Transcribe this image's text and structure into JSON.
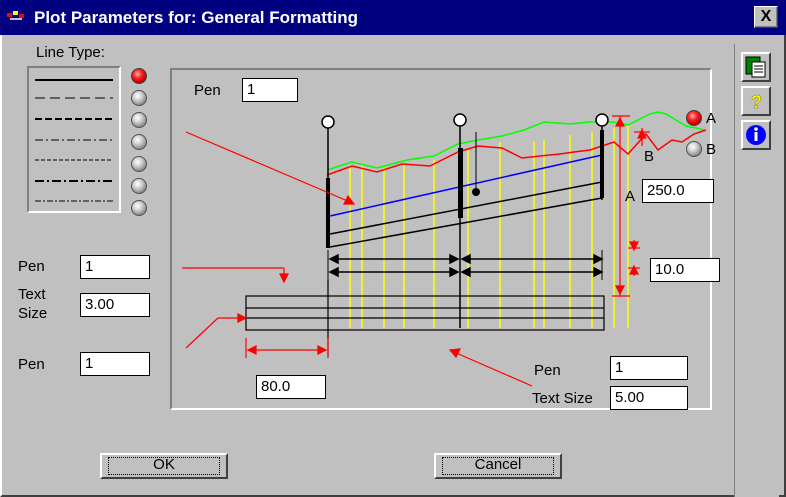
{
  "window": {
    "title": "Plot Parameters for:  General Formatting",
    "close_label": "X"
  },
  "line_type": {
    "label": "Line Type:",
    "options_count_visible": 7,
    "selected_index": 0
  },
  "left_fields": {
    "pen1_label": "Pen",
    "pen1_value": "1",
    "text_size_label_1": "Text",
    "text_size_label_2": "Size",
    "text_size_value": "3.00",
    "pen2_label": "Pen",
    "pen2_value": "1"
  },
  "canvas": {
    "pen_label": "Pen",
    "pen_value": "1",
    "a_field_value": "250.0",
    "a_label": "A",
    "b_label": "B",
    "spacing_value": "10.0",
    "offset_value": "80.0",
    "bottom_pen_label": "Pen",
    "bottom_pen_value": "1",
    "bottom_text_size_label": "Text Size",
    "bottom_text_size_value": "5.00"
  },
  "radio_ab": {
    "a_label": "A",
    "b_label": "B",
    "selected": "A"
  },
  "buttons": {
    "ok": "OK",
    "cancel": "Cancel"
  },
  "sidebar": {
    "icons": [
      "spreadsheet-icon",
      "help-question-icon",
      "info-icon"
    ]
  },
  "colors": {
    "titlebar": "#000080",
    "dialog": "#c0c0c0",
    "profile_green": "#00ff00",
    "profile_red": "#ff0000",
    "profile_blue": "#0000ff",
    "stations_yellow": "#ffff00",
    "arrow_red": "#ff0000"
  }
}
